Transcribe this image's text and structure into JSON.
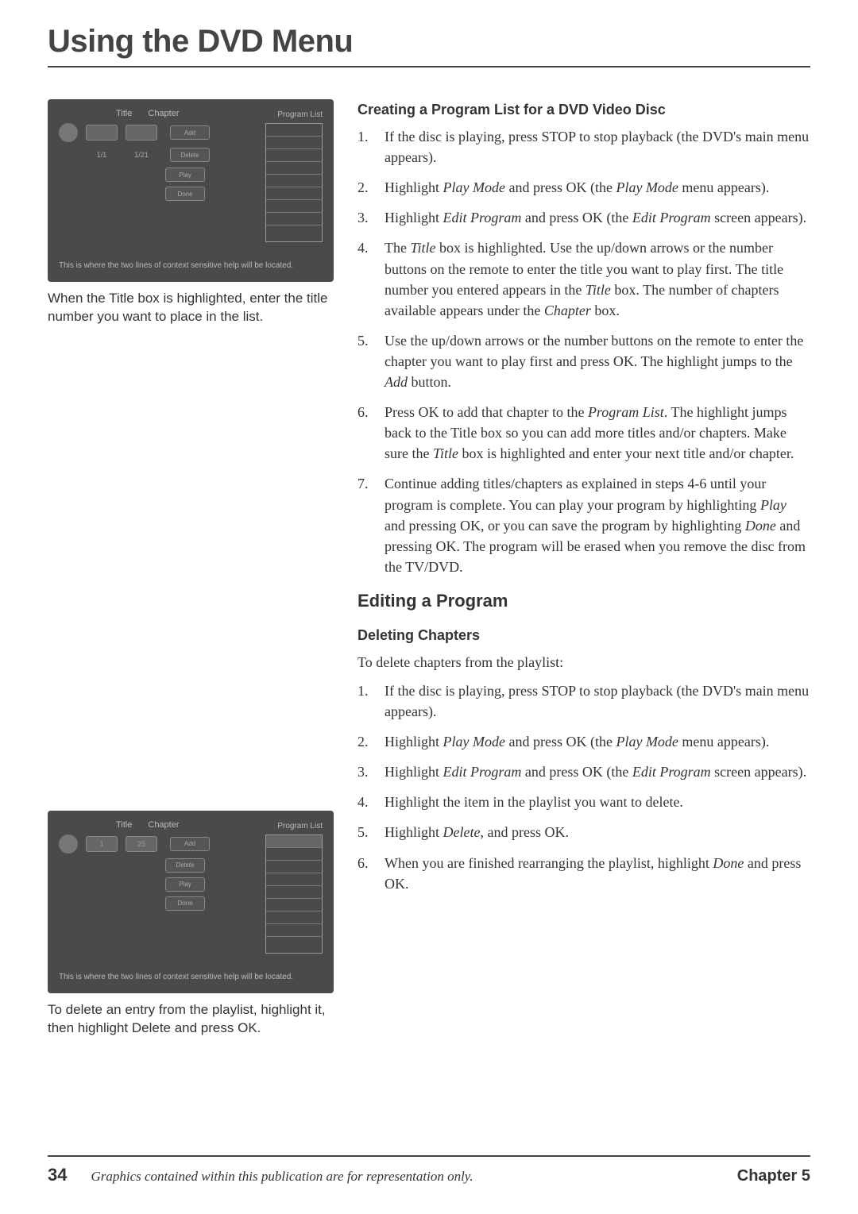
{
  "page": {
    "title": "Using the DVD Menu",
    "number": "34",
    "footer_note": "Graphics contained within this publication are for representation only.",
    "chapter_label": "Chapter 5"
  },
  "screenshot1": {
    "caption": "When the Title box is highlighted, enter the title number you want to place in the list.",
    "hdr_title": "Title",
    "hdr_chapter": "Chapter",
    "list_hdr": "Program List",
    "val_title": "1/1",
    "val_chapter": "1/21",
    "btn_add": "Add",
    "btn_delete": "Delete",
    "btn_play": "Play",
    "btn_done": "Done",
    "help": "This is where the two lines of context sensitive help will be located."
  },
  "screenshot2": {
    "caption": "To delete an entry from the playlist, highlight it, then highlight Delete and press OK.",
    "hdr_title": "Title",
    "hdr_chapter": "Chapter",
    "list_hdr": "Program List",
    "val_title": "1",
    "val_chapter": "25",
    "btn_add": "Add",
    "btn_delete": "Delete",
    "btn_play": "Play",
    "btn_done": "Done",
    "help": "This is where the two lines of context sensitive help will be located."
  },
  "section_creating": {
    "heading": "Creating a Program List for a DVD Video Disc",
    "steps": [
      "If the disc is playing, press STOP to stop playback (the DVD's main menu appears).",
      "Highlight <span class=\"ital\">Play Mode</span> and press OK (the <span class=\"ital\">Play Mode</span> menu appears).",
      "Highlight <span class=\"ital\">Edit Program</span> and press OK (the <span class=\"ital\">Edit Program</span> screen appears).",
      "The <span class=\"ital\">Title</span> box is highlighted. Use the up/down arrows or the number buttons on the remote to enter the title you want to play first. The title number you entered appears in the <span class=\"ital\">Title</span> box. The number of chapters available appears under the <span class=\"ital\">Chapter</span> box.",
      "Use the up/down arrows or the number buttons on the remote to enter the chapter you want to play first and press OK. The highlight jumps to the <span class=\"ital\">Add</span> button.",
      "Press OK to add that chapter to the <span class=\"ital\">Program List</span>. The highlight jumps back to the Title box so you can add more titles and/or chapters. Make sure the <span class=\"ital\">Title</span> box is highlighted and enter your next title and/or chapter.",
      "Continue adding titles/chapters as explained in steps 4-6 until your program is complete. You can play your program by highlighting <span class=\"ital\">Play</span> and pressing OK, or you can save the program by highlighting <span class=\"ital\">Done</span> and pressing OK. The program will be erased when you remove the disc from the TV/DVD."
    ]
  },
  "section_editing": {
    "heading": "Editing a Program",
    "sub_heading": "Deleting Chapters",
    "intro": "To delete chapters from the playlist:",
    "steps": [
      "If the disc is playing, press STOP to stop playback (the DVD's main menu appears).",
      "Highlight <span class=\"ital\">Play Mode</span> and press OK (the <span class=\"ital\">Play Mode</span> menu appears).",
      "Highlight <span class=\"ital\">Edit Program</span> and press OK (the <span class=\"ital\">Edit Program</span> screen appears).",
      "Highlight the item in the playlist you want to delete.",
      "Highlight <span class=\"ital\">Delete</span>, and press OK.",
      "When you are finished rearranging the playlist, highlight <span class=\"ital\">Done</span> and press OK."
    ]
  }
}
